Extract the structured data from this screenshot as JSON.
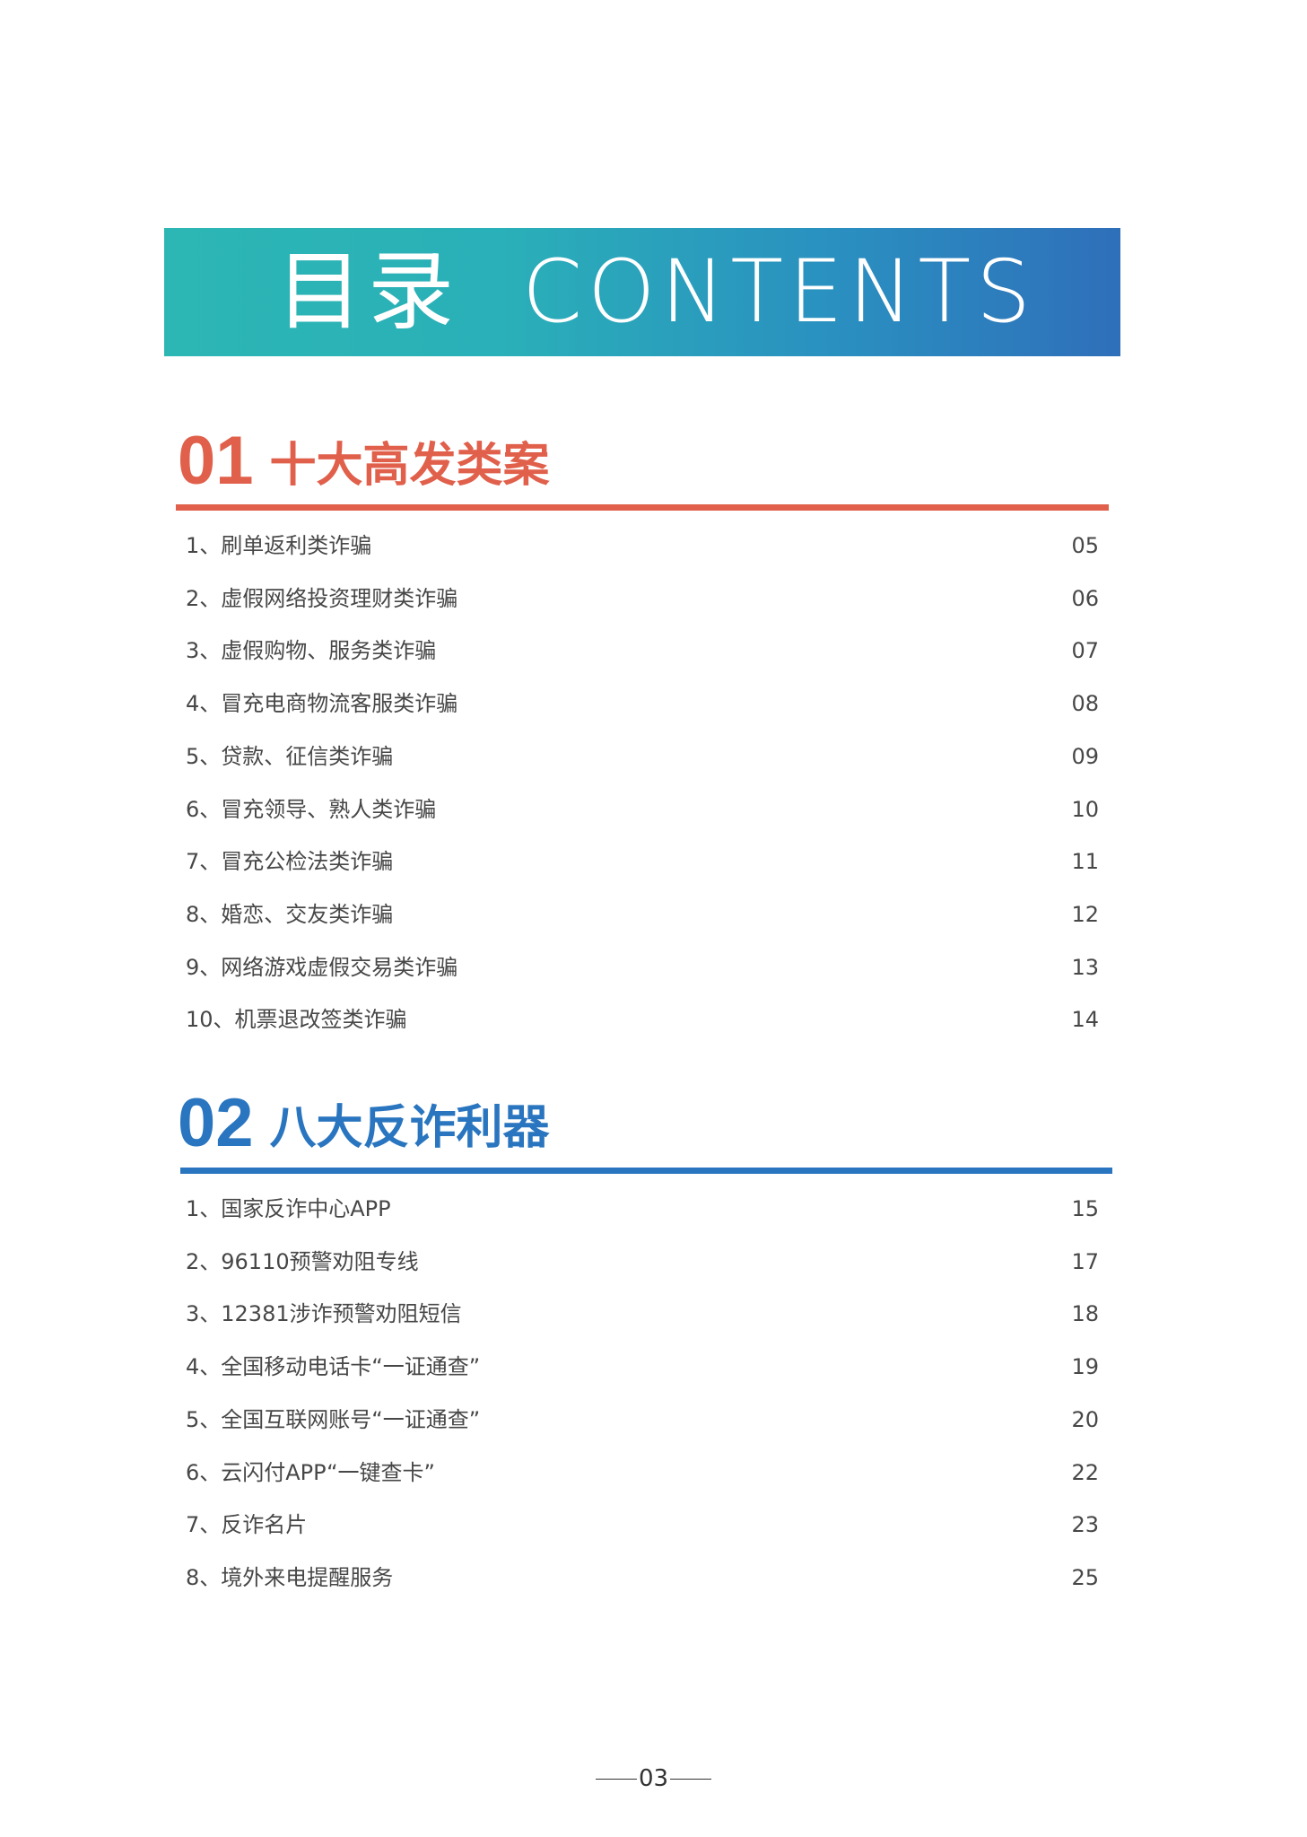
{
  "banner": {
    "title_cn": "目录",
    "title_en": "CONTENTS"
  },
  "colors": {
    "banner_start": "#2cb6b4",
    "banner_end": "#2f6fba",
    "section1": "#e0604b",
    "section2": "#2a75bf",
    "text": "#474747"
  },
  "sections": [
    {
      "number": "01",
      "title": "十大高发类案",
      "items": [
        {
          "label": "1、刷单返利类诈骗",
          "page": "05"
        },
        {
          "label": "2、虚假网络投资理财类诈骗",
          "page": "06"
        },
        {
          "label": "3、虚假购物、服务类诈骗",
          "page": "07"
        },
        {
          "label": "4、冒充电商物流客服类诈骗",
          "page": "08"
        },
        {
          "label": "5、贷款、征信类诈骗",
          "page": "09"
        },
        {
          "label": "6、冒充领导、熟人类诈骗",
          "page": "10"
        },
        {
          "label": "7、冒充公检法类诈骗",
          "page": "11"
        },
        {
          "label": "8、婚恋、交友类诈骗",
          "page": "12"
        },
        {
          "label": "9、网络游戏虚假交易类诈骗",
          "page": "13"
        },
        {
          "label": "10、机票退改签类诈骗",
          "page": "14"
        }
      ]
    },
    {
      "number": "02",
      "title": "八大反诈利器",
      "items": [
        {
          "label": "1、国家反诈中心APP",
          "page": "15"
        },
        {
          "label": "2、96110预警劝阻专线",
          "page": "17"
        },
        {
          "label": "3、12381涉诈预警劝阻短信",
          "page": "18"
        },
        {
          "label": "4、全国移动电话卡“一证通查”",
          "page": "19"
        },
        {
          "label": "5、全国互联网账号“一证通查”",
          "page": "20"
        },
        {
          "label": "6、云闪付APP“一键查卡”",
          "page": "22"
        },
        {
          "label": "7、反诈名片",
          "page": "23"
        },
        {
          "label": "8、境外来电提醒服务",
          "page": "25"
        }
      ]
    }
  ],
  "footer": {
    "page_number": "03"
  }
}
